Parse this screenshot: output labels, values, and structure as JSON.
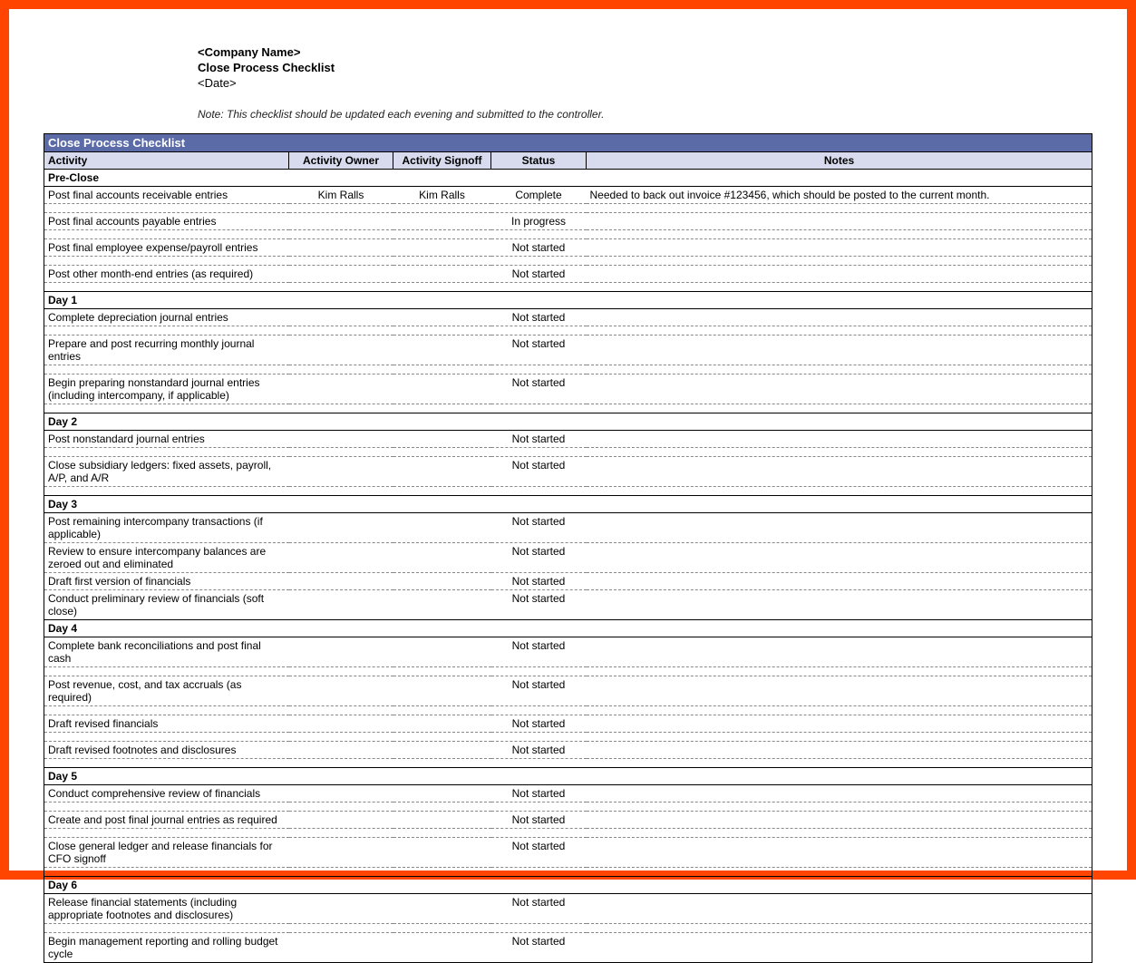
{
  "colors": {
    "frame_border": "#ff4500",
    "title_bar_bg": "#5a6ba8",
    "title_bar_text": "#ffffff",
    "header_row_bg": "#d7dbed",
    "solid_border": "#000000",
    "dashed_border": "#888888",
    "background": "#ffffff"
  },
  "header": {
    "company": "<Company Name>",
    "title": "Close Process Checklist",
    "date": "<Date>",
    "note": "Note: This checklist should be updated each evening and submitted to the controller."
  },
  "table": {
    "title": "Close Process Checklist",
    "columns": [
      "Activity",
      "Activity Owner",
      "Activity Signoff",
      "Status",
      "Notes"
    ],
    "sections": [
      {
        "label": "Pre-Close",
        "rows": [
          {
            "activity": "Post final accounts receivable entries",
            "owner": "Kim Ralls",
            "signoff": "Kim Ralls",
            "status": "Complete",
            "notes": "Needed to back out invoice #123456, which should be posted to the current month."
          },
          {
            "activity": "Post final accounts payable entries",
            "owner": "",
            "signoff": "",
            "status": "In progress",
            "notes": ""
          },
          {
            "activity": "Post final employee expense/payroll entries",
            "owner": "",
            "signoff": "",
            "status": "Not started",
            "notes": ""
          },
          {
            "activity": "Post other month-end entries (as required)",
            "owner": "",
            "signoff": "",
            "status": "Not started",
            "notes": ""
          }
        ]
      },
      {
        "label": "Day 1",
        "rows": [
          {
            "activity": "Complete depreciation journal entries",
            "owner": "",
            "signoff": "",
            "status": "Not started",
            "notes": ""
          },
          {
            "activity": "Prepare and post recurring monthly journal entries",
            "owner": "",
            "signoff": "",
            "status": "Not started",
            "notes": ""
          },
          {
            "activity": "Begin preparing nonstandard journal entries (including intercompany, if applicable)",
            "owner": "",
            "signoff": "",
            "status": "Not started",
            "notes": ""
          }
        ]
      },
      {
        "label": "Day 2",
        "rows": [
          {
            "activity": "Post nonstandard journal entries",
            "owner": "",
            "signoff": "",
            "status": "Not started",
            "notes": ""
          },
          {
            "activity": "Close subsidiary ledgers: fixed assets, payroll, A/P, and A/R",
            "owner": "",
            "signoff": "",
            "status": "Not started",
            "notes": ""
          }
        ]
      },
      {
        "label": "Day 3",
        "rows": [
          {
            "activity": "Post remaining intercompany transactions (if applicable)",
            "owner": "",
            "signoff": "",
            "status": "Not started",
            "notes": ""
          },
          {
            "activity": "Review to ensure intercompany balances are zeroed out and eliminated",
            "owner": "",
            "signoff": "",
            "status": "Not started",
            "notes": ""
          },
          {
            "activity": "Draft first version of financials",
            "owner": "",
            "signoff": "",
            "status": "Not started",
            "notes": ""
          },
          {
            "activity": "Conduct preliminary review of financials (soft close)",
            "owner": "",
            "signoff": "",
            "status": "Not started",
            "notes": ""
          }
        ]
      },
      {
        "label": "Day 4",
        "rows": [
          {
            "activity": "Complete bank reconciliations and post final cash",
            "owner": "",
            "signoff": "",
            "status": "Not started",
            "notes": ""
          },
          {
            "activity": "Post revenue, cost, and tax accruals (as required)",
            "owner": "",
            "signoff": "",
            "status": "Not started",
            "notes": ""
          },
          {
            "activity": "Draft revised financials",
            "owner": "",
            "signoff": "",
            "status": "Not started",
            "notes": ""
          },
          {
            "activity": "Draft revised footnotes and disclosures",
            "owner": "",
            "signoff": "",
            "status": "Not started",
            "notes": ""
          }
        ]
      },
      {
        "label": "Day 5",
        "rows": [
          {
            "activity": "Conduct comprehensive review of financials",
            "owner": "",
            "signoff": "",
            "status": "Not started",
            "notes": ""
          },
          {
            "activity": "Create and post final journal entries as required",
            "owner": "",
            "signoff": "",
            "status": "Not started",
            "notes": ""
          },
          {
            "activity": "Close general ledger and release financials for CFO signoff",
            "owner": "",
            "signoff": "",
            "status": "Not started",
            "notes": ""
          }
        ]
      },
      {
        "label": "Day 6",
        "rows": [
          {
            "activity": "Release financial statements (including appropriate footnotes and disclosures)",
            "owner": "",
            "signoff": "",
            "status": "Not started",
            "notes": ""
          },
          {
            "activity": "Begin management reporting and rolling budget cycle",
            "owner": "",
            "signoff": "",
            "status": "Not started",
            "notes": ""
          }
        ]
      }
    ]
  }
}
